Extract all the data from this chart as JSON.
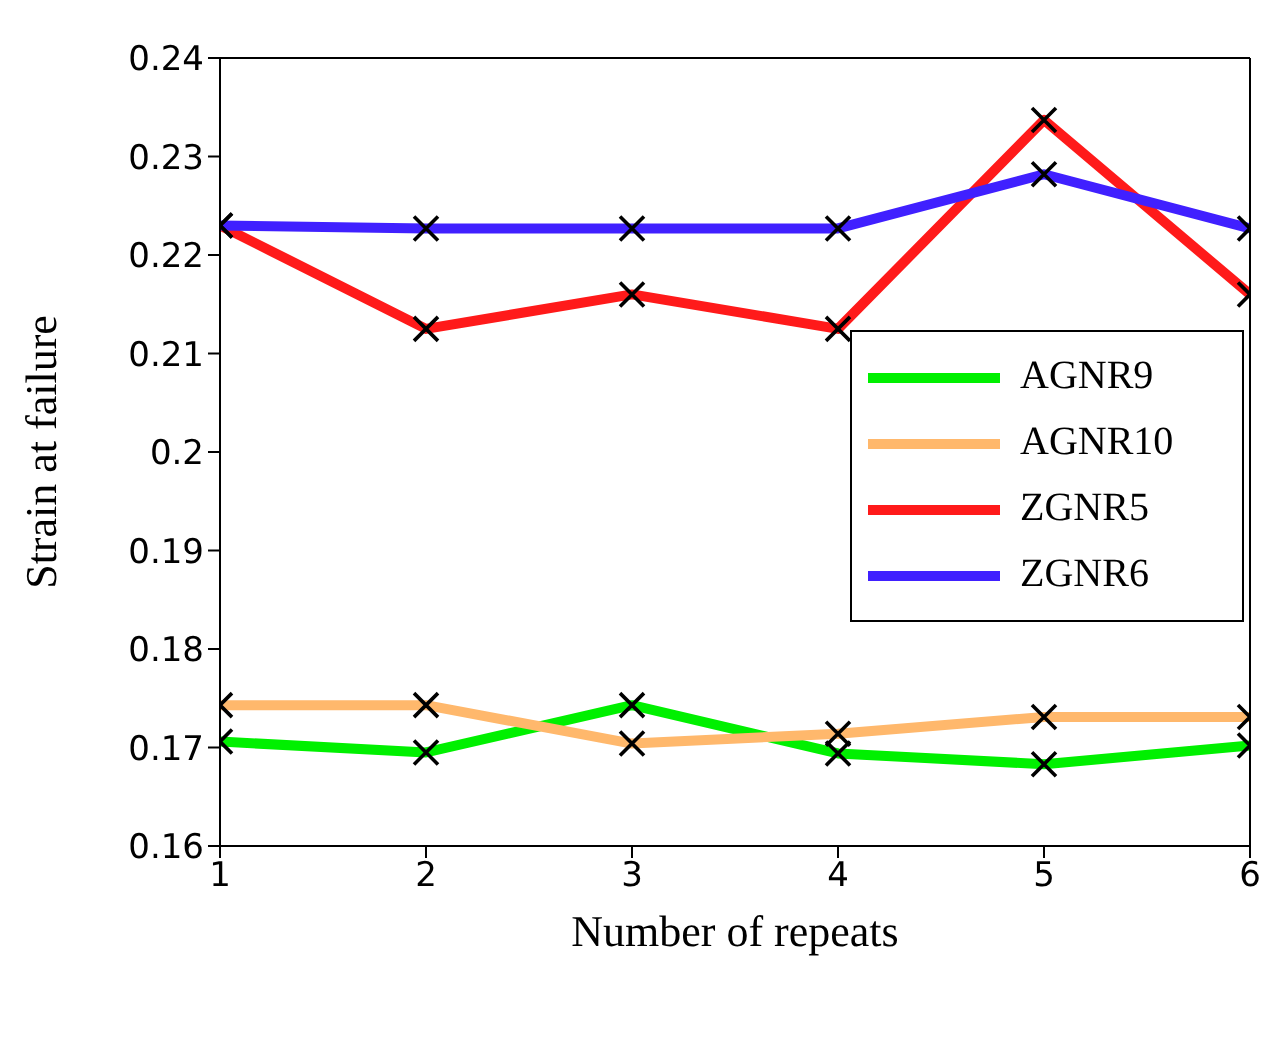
{
  "chart_data": {
    "type": "line",
    "xlabel": "Number of repeats",
    "ylabel": "Strain at failure",
    "x": [
      1,
      2,
      3,
      4,
      5,
      6
    ],
    "series": [
      {
        "name": "AGNR9",
        "color": "#00f000",
        "values": [
          0.1706,
          0.1695,
          0.1743,
          0.1694,
          0.1683,
          0.1702
        ]
      },
      {
        "name": "AGNR10",
        "color": "#ffb86c",
        "values": [
          0.1743,
          0.1743,
          0.1704,
          0.1714,
          0.1731,
          0.1731
        ]
      },
      {
        "name": "ZGNR5",
        "color": "#ff1a1a",
        "values": [
          0.223,
          0.2125,
          0.216,
          0.2125,
          0.2337,
          0.216
        ]
      },
      {
        "name": "ZGNR6",
        "color": "#4020ff",
        "values": [
          0.223,
          0.2227,
          0.2227,
          0.2227,
          0.2282,
          0.2227
        ]
      }
    ],
    "xlim": [
      1,
      6
    ],
    "xticks": [
      1,
      2,
      3,
      4,
      5,
      6
    ],
    "ylim": [
      0.16,
      0.24
    ],
    "yticks": [
      0.16,
      0.17,
      0.18,
      0.19,
      0.2,
      0.21,
      0.22,
      0.23,
      0.24
    ],
    "marker": "cross",
    "legend": "right",
    "line_style": "solid",
    "grid": false
  }
}
